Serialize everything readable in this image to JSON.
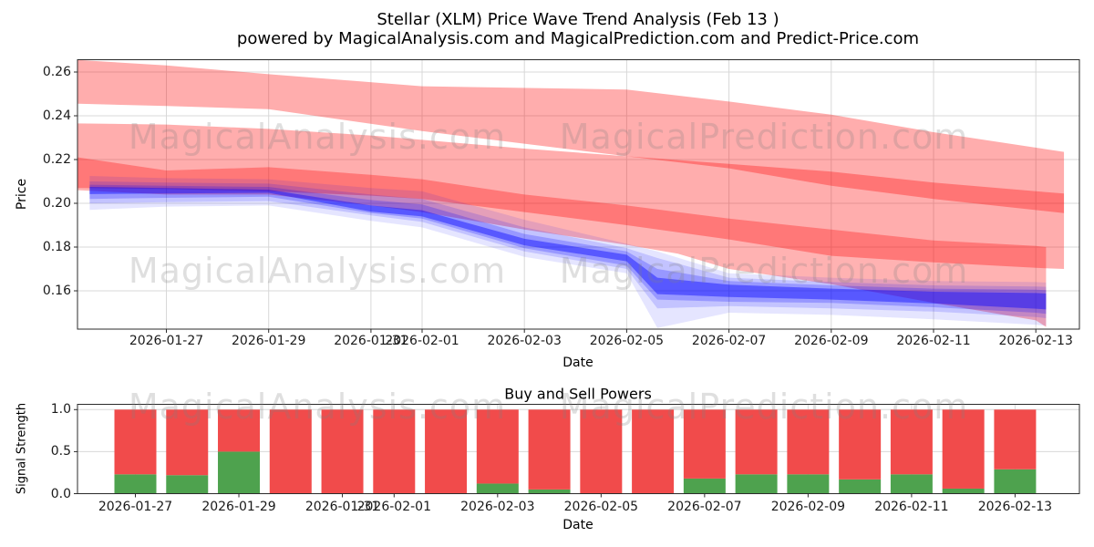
{
  "header": {
    "title_line1": "Stellar (XLM) Price Wave Trend Analysis (Feb 13 )",
    "title_line2": "powered by MagicalAnalysis.com and MagicalPrediction.com and Predict-Price.com"
  },
  "watermarks": {
    "left": "MagicalAnalysis.com",
    "right": "MagicalPrediction.com"
  },
  "colors": {
    "red_band": "#ff0000",
    "blue_band": "#0000ff",
    "bar_sell_red": "#f14b4b",
    "bar_buy_green": "#4ea24e",
    "grid": "#d8d8d8",
    "spine": "#2b2b2b",
    "watermark_gray": "#808080"
  },
  "chart_data": [
    {
      "type": "area",
      "name": "price_wave_trend",
      "ylabel": "Price",
      "xlabel": "Date",
      "ylim": [
        0.1425,
        0.2656
      ],
      "grid": true,
      "ytick_values": [
        0.26,
        0.24,
        0.22,
        0.2,
        0.18,
        0.16
      ],
      "ytick_labels": [
        "0.26",
        "0.24",
        "0.22",
        "0.20",
        "0.18",
        "0.16"
      ],
      "xtick_days": [
        0,
        2,
        4,
        5,
        7,
        9,
        11,
        13,
        15,
        17
      ],
      "xtick_labels": [
        "2026-01-27",
        "2026-01-29",
        "2026-01-31",
        "2026-02-01",
        "2026-02-03",
        "2026-02-05",
        "2026-02-07",
        "2026-02-09",
        "2026-02-11",
        "2026-02-13"
      ],
      "red_bands": [
        {
          "name": "upper-resistance-band",
          "days": [
            -1.73,
            0,
            2,
            5,
            9,
            11,
            13,
            15,
            17.55
          ],
          "top": [
            0.2655,
            0.263,
            0.259,
            0.2535,
            0.252,
            0.2465,
            0.2405,
            0.2325,
            0.2235
          ],
          "bottom": [
            0.2455,
            0.2445,
            0.243,
            0.233,
            0.2215,
            0.216,
            0.208,
            0.202,
            0.1955
          ],
          "alpha": 0.32
        },
        {
          "name": "middle-resistance-band",
          "days": [
            -1.73,
            0,
            2,
            4,
            5,
            7,
            9,
            11,
            13,
            15,
            17,
            17.55
          ],
          "top": [
            0.2365,
            0.236,
            0.234,
            0.231,
            0.229,
            0.225,
            0.2215,
            0.218,
            0.2145,
            0.2095,
            0.2055,
            0.2045
          ],
          "bottom": [
            0.207,
            0.2065,
            0.2055,
            0.2035,
            0.202,
            0.196,
            0.19,
            0.1835,
            0.176,
            0.173,
            0.1705,
            0.17
          ],
          "alpha": 0.32
        },
        {
          "name": "lower-wave-band",
          "days": [
            -1.73,
            0,
            2,
            4,
            5,
            7,
            9,
            10,
            11,
            13,
            15,
            17,
            17.2
          ],
          "top": [
            0.221,
            0.215,
            0.2165,
            0.213,
            0.211,
            0.204,
            0.199,
            0.196,
            0.193,
            0.188,
            0.183,
            0.1805,
            0.18
          ],
          "bottom": [
            0.206,
            0.204,
            0.204,
            0.199,
            0.196,
            0.188,
            0.181,
            0.177,
            0.17,
            0.163,
            0.1545,
            0.1465,
            0.1435
          ],
          "alpha": 0.3
        }
      ],
      "blue_bands": [
        {
          "name": "prediction-envelope-outer",
          "days": [
            -1.5,
            0,
            2,
            4,
            5,
            7,
            9,
            9.6,
            11,
            13,
            15,
            17,
            17.2
          ],
          "top": [
            0.2125,
            0.2115,
            0.211,
            0.207,
            0.2055,
            0.1925,
            0.1815,
            0.178,
            0.168,
            0.166,
            0.1645,
            0.164,
            0.1638
          ],
          "bottom": [
            0.197,
            0.1985,
            0.199,
            0.192,
            0.189,
            0.1755,
            0.168,
            0.143,
            0.15,
            0.149,
            0.147,
            0.1445,
            0.144
          ],
          "alpha": 0.1
        },
        {
          "name": "prediction-envelope-mid1",
          "days": [
            -1.5,
            0,
            2,
            4,
            5,
            7,
            9,
            9.6,
            11,
            13,
            15,
            17,
            17.2
          ],
          "top": [
            0.21,
            0.2095,
            0.209,
            0.204,
            0.202,
            0.189,
            0.1795,
            0.175,
            0.166,
            0.164,
            0.1625,
            0.162,
            0.1618
          ],
          "bottom": [
            0.2,
            0.2005,
            0.201,
            0.1945,
            0.1915,
            0.178,
            0.17,
            0.152,
            0.153,
            0.152,
            0.1505,
            0.148,
            0.1475
          ],
          "alpha": 0.15
        },
        {
          "name": "prediction-envelope-mid2",
          "days": [
            -1.5,
            0,
            2,
            4,
            5,
            7,
            9,
            9.6,
            11,
            13,
            15,
            17,
            17.2
          ],
          "top": [
            0.2085,
            0.208,
            0.2075,
            0.2015,
            0.1995,
            0.186,
            0.178,
            0.17,
            0.1645,
            0.1625,
            0.161,
            0.1605,
            0.1603
          ],
          "bottom": [
            0.202,
            0.2025,
            0.203,
            0.1955,
            0.193,
            0.1795,
            0.1715,
            0.156,
            0.155,
            0.1545,
            0.1525,
            0.15,
            0.1495
          ],
          "alpha": 0.22
        },
        {
          "name": "prediction-core",
          "days": [
            -1.5,
            0,
            2,
            4,
            5,
            7,
            9,
            9.6,
            11,
            13,
            15,
            17,
            17.2
          ],
          "top": [
            0.2075,
            0.207,
            0.2062,
            0.199,
            0.1968,
            0.1838,
            0.1765,
            0.166,
            0.1628,
            0.161,
            0.1596,
            0.159,
            0.1588
          ],
          "bottom": [
            0.2042,
            0.2045,
            0.2048,
            0.1962,
            0.194,
            0.1808,
            0.1735,
            0.1585,
            0.1572,
            0.156,
            0.1542,
            0.1518,
            0.1515
          ],
          "alpha": 0.42
        }
      ]
    },
    {
      "type": "bar",
      "name": "buy_sell_powers",
      "title": "Buy and Sell Powers",
      "ylabel": "Signal Strength",
      "xlabel": "Date",
      "ylim": [
        0,
        1.06
      ],
      "grid": true,
      "ytick_values": [
        0.0,
        0.5,
        1.0
      ],
      "ytick_labels": [
        "0.0",
        "0.5",
        "1.0"
      ],
      "xtick_days": [
        0,
        2,
        4,
        5,
        7,
        9,
        11,
        13,
        15,
        17
      ],
      "xtick_labels": [
        "2026-01-27",
        "2026-01-29",
        "2026-01-31",
        "2026-02-01",
        "2026-02-03",
        "2026-02-05",
        "2026-02-07",
        "2026-02-09",
        "2026-02-11",
        "2026-02-13"
      ],
      "categories": [
        "2026-01-27",
        "2026-01-28",
        "2026-01-29",
        "2026-01-30",
        "2026-01-31",
        "2026-02-01",
        "2026-02-02",
        "2026-02-03",
        "2026-02-04",
        "2026-02-05",
        "2026-02-06",
        "2026-02-07",
        "2026-02-08",
        "2026-02-09",
        "2026-02-10",
        "2026-02-11",
        "2026-02-12",
        "2026-02-13"
      ],
      "series": [
        {
          "name": "buy_power",
          "values": [
            0.23,
            0.22,
            0.5,
            0.0,
            0.0,
            0.0,
            0.0,
            0.12,
            0.05,
            0.0,
            0.0,
            0.18,
            0.23,
            0.23,
            0.17,
            0.23,
            0.06,
            0.29
          ]
        },
        {
          "name": "sell_power",
          "values": [
            0.77,
            0.78,
            0.5,
            1.0,
            1.0,
            1.0,
            1.0,
            0.88,
            0.95,
            1.0,
            1.0,
            0.82,
            0.77,
            0.77,
            0.83,
            0.77,
            0.94,
            0.71
          ]
        }
      ]
    }
  ]
}
